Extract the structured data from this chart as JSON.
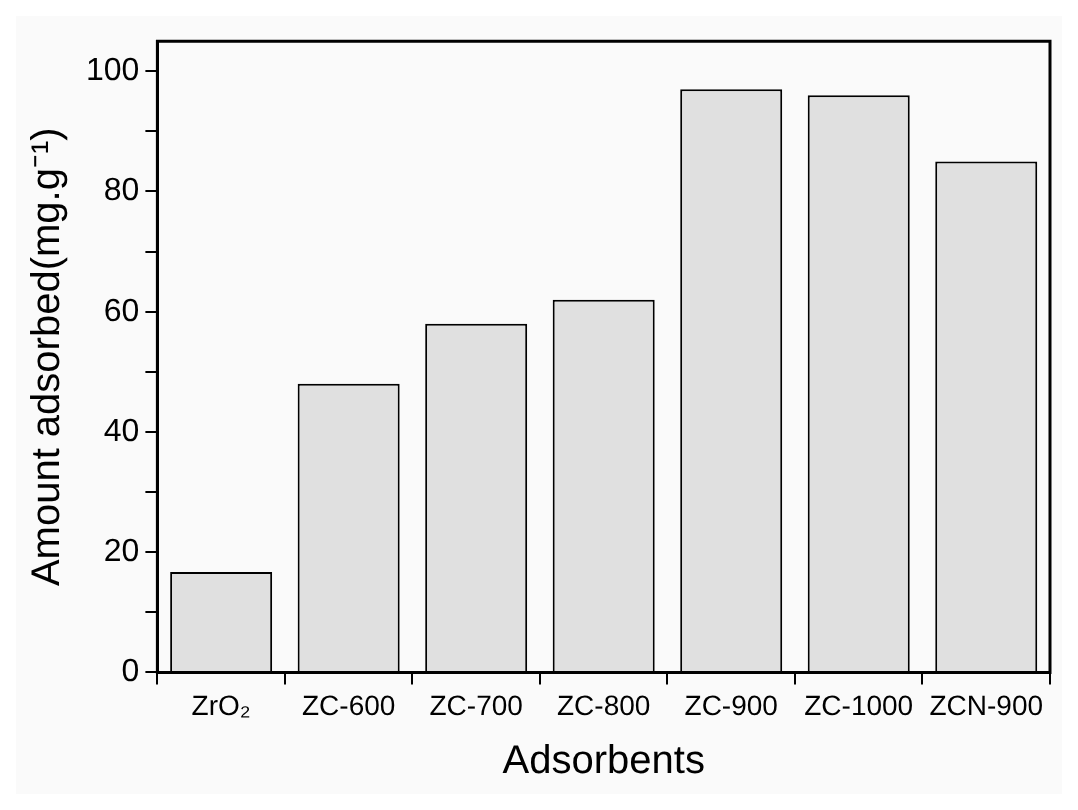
{
  "chart_data": {
    "type": "bar",
    "xlabel": "Adsorbents",
    "ylabel": "Amount adsorbed(mg.g⁻¹)",
    "categories": [
      "ZrO₂",
      "ZC-600",
      "ZC-700",
      "ZC-800",
      "ZC-900",
      "ZC-1000",
      "ZCN-900"
    ],
    "values": [
      16.7,
      48,
      58,
      62,
      97,
      96,
      85
    ],
    "color": "#e0e0e0",
    "ylim": [
      0,
      105
    ],
    "yticks": [
      0,
      {
        "value": 10,
        "label": null
      },
      20,
      {
        "value": 30,
        "label": null
      },
      40,
      {
        "value": 50,
        "label": null
      },
      60,
      {
        "value": 70,
        "label": null
      },
      80,
      {
        "value": 90,
        "label": null
      },
      100
    ],
    "grid": false,
    "legend": false
  }
}
